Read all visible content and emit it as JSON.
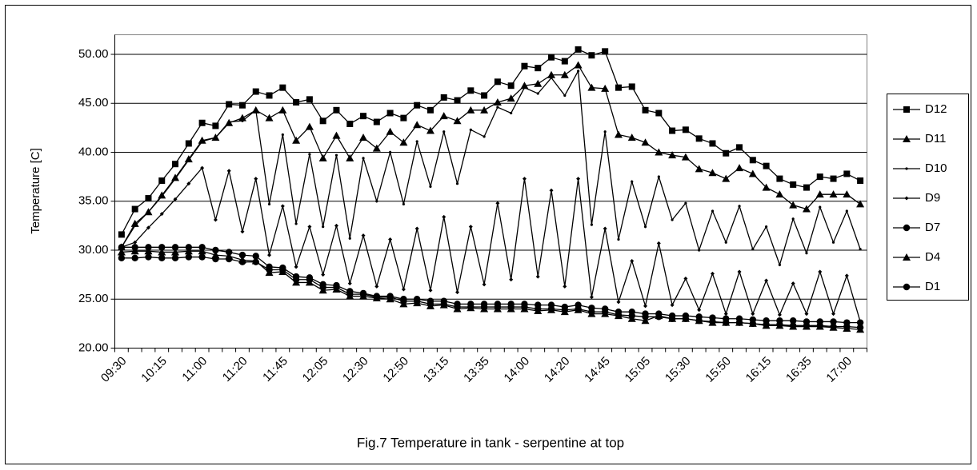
{
  "chart_data": {
    "type": "line",
    "xlabel": "Fig.7 Temperature in tank - serpentine at top",
    "ylabel": "Temperature [C]",
    "categories": [
      "09:30",
      null,
      null,
      "10:15",
      null,
      null,
      "11:00",
      null,
      null,
      "11:20",
      null,
      null,
      "11:45",
      null,
      null,
      "12:05",
      null,
      null,
      "12:30",
      null,
      null,
      "12:50",
      null,
      null,
      "13:15",
      null,
      null,
      "13:35",
      null,
      null,
      "14:00",
      null,
      null,
      "14:20",
      null,
      null,
      "14:45",
      null,
      null,
      "15:05",
      null,
      null,
      "15:30",
      null,
      null,
      "15:50",
      null,
      null,
      "16:15",
      null,
      null,
      "16:35",
      null,
      null,
      "17:00",
      null
    ],
    "ylim": [
      20,
      52
    ],
    "yticks": [
      {
        "value": 20,
        "label": "20.00"
      },
      {
        "value": 25,
        "label": "25.00"
      },
      {
        "value": 30,
        "label": "30.00"
      },
      {
        "value": 35,
        "label": "35.00"
      },
      {
        "value": 40,
        "label": "40.00"
      },
      {
        "value": 45,
        "label": "45.00"
      },
      {
        "value": 50,
        "label": "50.00"
      }
    ],
    "grid": true,
    "legend": "right",
    "series": [
      {
        "name": "D12",
        "color": "#000000",
        "marker": "square",
        "values": [
          31.6,
          34.2,
          35.3,
          37.1,
          38.8,
          40.9,
          43.0,
          42.7,
          44.9,
          44.8,
          46.2,
          45.8,
          46.6,
          45.1,
          45.4,
          43.2,
          44.3,
          42.9,
          43.7,
          43.1,
          44.0,
          43.5,
          44.8,
          44.3,
          45.6,
          45.3,
          46.3,
          45.8,
          47.2,
          46.8,
          48.8,
          48.6,
          49.7,
          49.3,
          50.5,
          49.9,
          50.3,
          46.6,
          46.7,
          44.3,
          44.0,
          42.2,
          42.3,
          41.4,
          40.9,
          39.9,
          40.5,
          39.2,
          38.6,
          37.3,
          36.7,
          36.4,
          37.5,
          37.3,
          37.8,
          37.1
        ]
      },
      {
        "name": "D11",
        "color": "#000000",
        "marker": "triangle",
        "values": [
          30.3,
          32.7,
          33.9,
          35.6,
          37.4,
          39.3,
          41.2,
          41.5,
          43.0,
          43.5,
          44.3,
          43.5,
          44.3,
          41.2,
          42.6,
          39.4,
          41.7,
          39.4,
          41.5,
          40.4,
          42.1,
          41.0,
          42.8,
          42.2,
          43.7,
          43.2,
          44.3,
          44.3,
          45.1,
          45.5,
          46.8,
          47.0,
          47.9,
          47.9,
          48.9,
          46.6,
          46.5,
          41.8,
          41.5,
          41.0,
          40.0,
          39.7,
          39.5,
          38.3,
          37.9,
          37.3,
          38.4,
          37.8,
          36.4,
          35.7,
          34.6,
          34.2,
          35.7,
          35.7,
          35.7,
          34.7
        ]
      },
      {
        "name": "D10",
        "color": "#000000",
        "marker": "dot",
        "values": [
          30.3,
          32.5,
          33.9,
          35.5,
          37.3,
          39.2,
          41.1,
          41.5,
          43.1,
          43.2,
          44.3,
          34.7,
          41.8,
          32.7,
          39.8,
          32.4,
          39.7,
          31.2,
          39.4,
          35.0,
          40.0,
          34.7,
          41.1,
          36.5,
          42.1,
          36.8,
          42.3,
          41.6,
          44.6,
          44.0,
          46.6,
          46.0,
          47.6,
          45.8,
          48.3,
          32.6,
          42.1,
          31.1,
          37.0,
          32.4,
          37.5,
          33.1,
          34.8,
          30.0,
          34.0,
          30.8,
          34.5,
          30.1,
          32.4,
          28.5,
          33.2,
          29.7,
          34.4,
          30.8,
          34.0,
          30.1
        ]
      },
      {
        "name": "D9",
        "color": "#000000",
        "marker": "diamond",
        "values": [
          30.3,
          30.8,
          32.3,
          33.7,
          35.2,
          36.8,
          38.4,
          33.1,
          38.1,
          31.9,
          37.3,
          29.5,
          34.5,
          28.3,
          32.4,
          27.5,
          32.5,
          26.6,
          31.5,
          26.3,
          31.1,
          26.0,
          32.2,
          25.9,
          33.4,
          25.7,
          32.4,
          26.5,
          34.8,
          27.0,
          37.3,
          27.3,
          36.1,
          26.3,
          37.3,
          25.2,
          32.2,
          24.7,
          28.9,
          24.3,
          30.7,
          24.4,
          27.1,
          23.9,
          27.6,
          23.5,
          27.8,
          23.5,
          26.9,
          23.4,
          26.6,
          23.5,
          27.8,
          23.5,
          27.4,
          22.7
        ]
      },
      {
        "name": "D7",
        "color": "#000000",
        "marker": "circle",
        "values": [
          30.3,
          30.3,
          30.3,
          30.3,
          30.3,
          30.3,
          30.3,
          30.0,
          29.8,
          29.5,
          29.4,
          28.3,
          28.2,
          27.3,
          27.2,
          26.5,
          26.4,
          25.8,
          25.6,
          25.3,
          25.3,
          25.0,
          25.0,
          24.8,
          24.8,
          24.5,
          24.5,
          24.5,
          24.5,
          24.5,
          24.5,
          24.4,
          24.4,
          24.2,
          24.4,
          24.1,
          24.0,
          23.7,
          23.7,
          23.5,
          23.5,
          23.3,
          23.3,
          23.2,
          23.1,
          23.0,
          23.0,
          22.9,
          22.8,
          22.8,
          22.8,
          22.7,
          22.7,
          22.7,
          22.6,
          22.6
        ]
      },
      {
        "name": "D4",
        "color": "#000000",
        "marker": "triangle",
        "values": [
          29.8,
          29.9,
          29.9,
          29.8,
          29.8,
          29.9,
          29.9,
          29.5,
          29.4,
          29.0,
          28.9,
          27.7,
          27.8,
          26.7,
          26.7,
          25.9,
          26.0,
          25.3,
          25.3,
          25.1,
          25.0,
          24.5,
          24.6,
          24.3,
          24.4,
          24.0,
          24.1,
          24.0,
          24.0,
          24.0,
          24.0,
          23.8,
          23.9,
          23.7,
          23.9,
          23.5,
          23.5,
          23.3,
          23.0,
          22.8,
          23.3,
          23.0,
          23.0,
          22.8,
          22.6,
          22.6,
          22.6,
          22.5,
          22.3,
          22.3,
          22.2,
          22.2,
          22.2,
          22.1,
          22.0,
          21.9
        ]
      },
      {
        "name": "D1",
        "color": "#000000",
        "marker": "circle",
        "values": [
          29.2,
          29.2,
          29.3,
          29.2,
          29.2,
          29.3,
          29.3,
          29.1,
          29.1,
          28.8,
          28.8,
          28.0,
          28.0,
          27.0,
          27.0,
          26.2,
          26.2,
          25.5,
          25.5,
          25.2,
          25.2,
          24.8,
          24.8,
          24.5,
          24.5,
          24.2,
          24.2,
          24.2,
          24.2,
          24.2,
          24.2,
          24.0,
          24.0,
          23.9,
          24.0,
          23.7,
          23.7,
          23.4,
          23.3,
          23.2,
          23.2,
          23.0,
          23.0,
          22.8,
          22.7,
          22.6,
          22.6,
          22.5,
          22.4,
          22.4,
          22.3,
          22.3,
          22.3,
          22.2,
          22.2,
          22.1
        ]
      }
    ]
  }
}
